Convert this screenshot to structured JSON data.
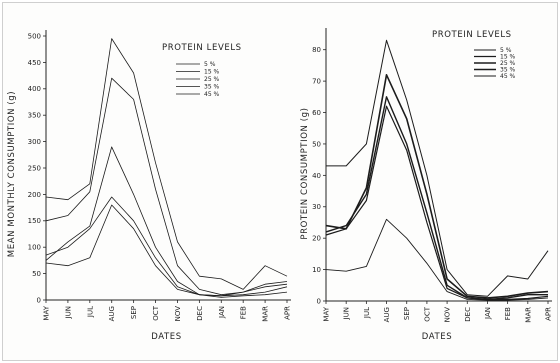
{
  "chart_data": [
    {
      "type": "line",
      "xlabel": "DATES",
      "ylabel": "MEAN MONTHLY CONSUMPTION  (g)",
      "legend_title": "PROTEIN  LEVELS",
      "legend_placement": "top-right",
      "categories": [
        "MAY",
        "JUN",
        "JUL",
        "AUG",
        "SEP",
        "OCT",
        "NOV",
        "DEC",
        "JAN",
        "FEB",
        "MAR",
        "APR"
      ],
      "ylim": [
        0,
        500
      ],
      "yticks": [
        "0",
        "50",
        "100",
        "150",
        "200",
        "250",
        "300",
        "350",
        "400",
        "450",
        "500"
      ],
      "series": [
        {
          "name": "5 %",
          "values": [
            70,
            65,
            80,
            180,
            135,
            65,
            20,
            10,
            8,
            10,
            15,
            25
          ]
        },
        {
          "name": "15 %",
          "values": [
            85,
            100,
            135,
            195,
            150,
            80,
            25,
            10,
            5,
            8,
            10,
            15
          ]
        },
        {
          "name": "25 %",
          "values": [
            75,
            110,
            140,
            290,
            200,
            100,
            35,
            10,
            8,
            15,
            25,
            30
          ]
        },
        {
          "name": "35 %",
          "values": [
            150,
            160,
            205,
            420,
            380,
            210,
            65,
            20,
            10,
            15,
            30,
            35
          ]
        },
        {
          "name": "45 %",
          "values": [
            195,
            190,
            220,
            495,
            430,
            260,
            110,
            45,
            40,
            20,
            65,
            45
          ]
        }
      ]
    },
    {
      "type": "line",
      "xlabel": "DATES",
      "ylabel": "PROTEIN  CONSUMPTION  (g)",
      "legend_title": "PROTEIN  LEVELS",
      "legend_placement": "top-right",
      "categories": [
        "MAY",
        "JUN",
        "JUL",
        "AUG",
        "SEP",
        "OCT",
        "NOV",
        "DEC",
        "JAN",
        "FEB",
        "MAR",
        "APR"
      ],
      "ylim": [
        0,
        85
      ],
      "yticks": [
        "0",
        "10",
        "20",
        "30",
        "40",
        "50",
        "60",
        "70",
        "80"
      ],
      "series": [
        {
          "name": "5 %",
          "values": [
            10,
            9.5,
            11,
            26,
            20,
            12,
            3,
            0.5,
            0.3,
            0.3,
            0.5,
            1
          ]
        },
        {
          "name": "15 %",
          "values": [
            21,
            23,
            32,
            62,
            48,
            25,
            4,
            1,
            0.5,
            0.5,
            0.8,
            1.5
          ]
        },
        {
          "name": "25 %",
          "values": [
            22,
            24,
            34,
            65,
            50,
            28,
            5,
            1,
            0.5,
            1,
            2,
            2
          ]
        },
        {
          "name": "35 %",
          "values": [
            24,
            23,
            36,
            72,
            58,
            34,
            7,
            1.5,
            1,
            1.5,
            2.5,
            3
          ]
        },
        {
          "name": "45 %",
          "values": [
            43,
            43,
            50,
            83,
            64,
            40,
            10,
            2,
            1.5,
            8,
            7,
            16
          ]
        }
      ]
    }
  ]
}
